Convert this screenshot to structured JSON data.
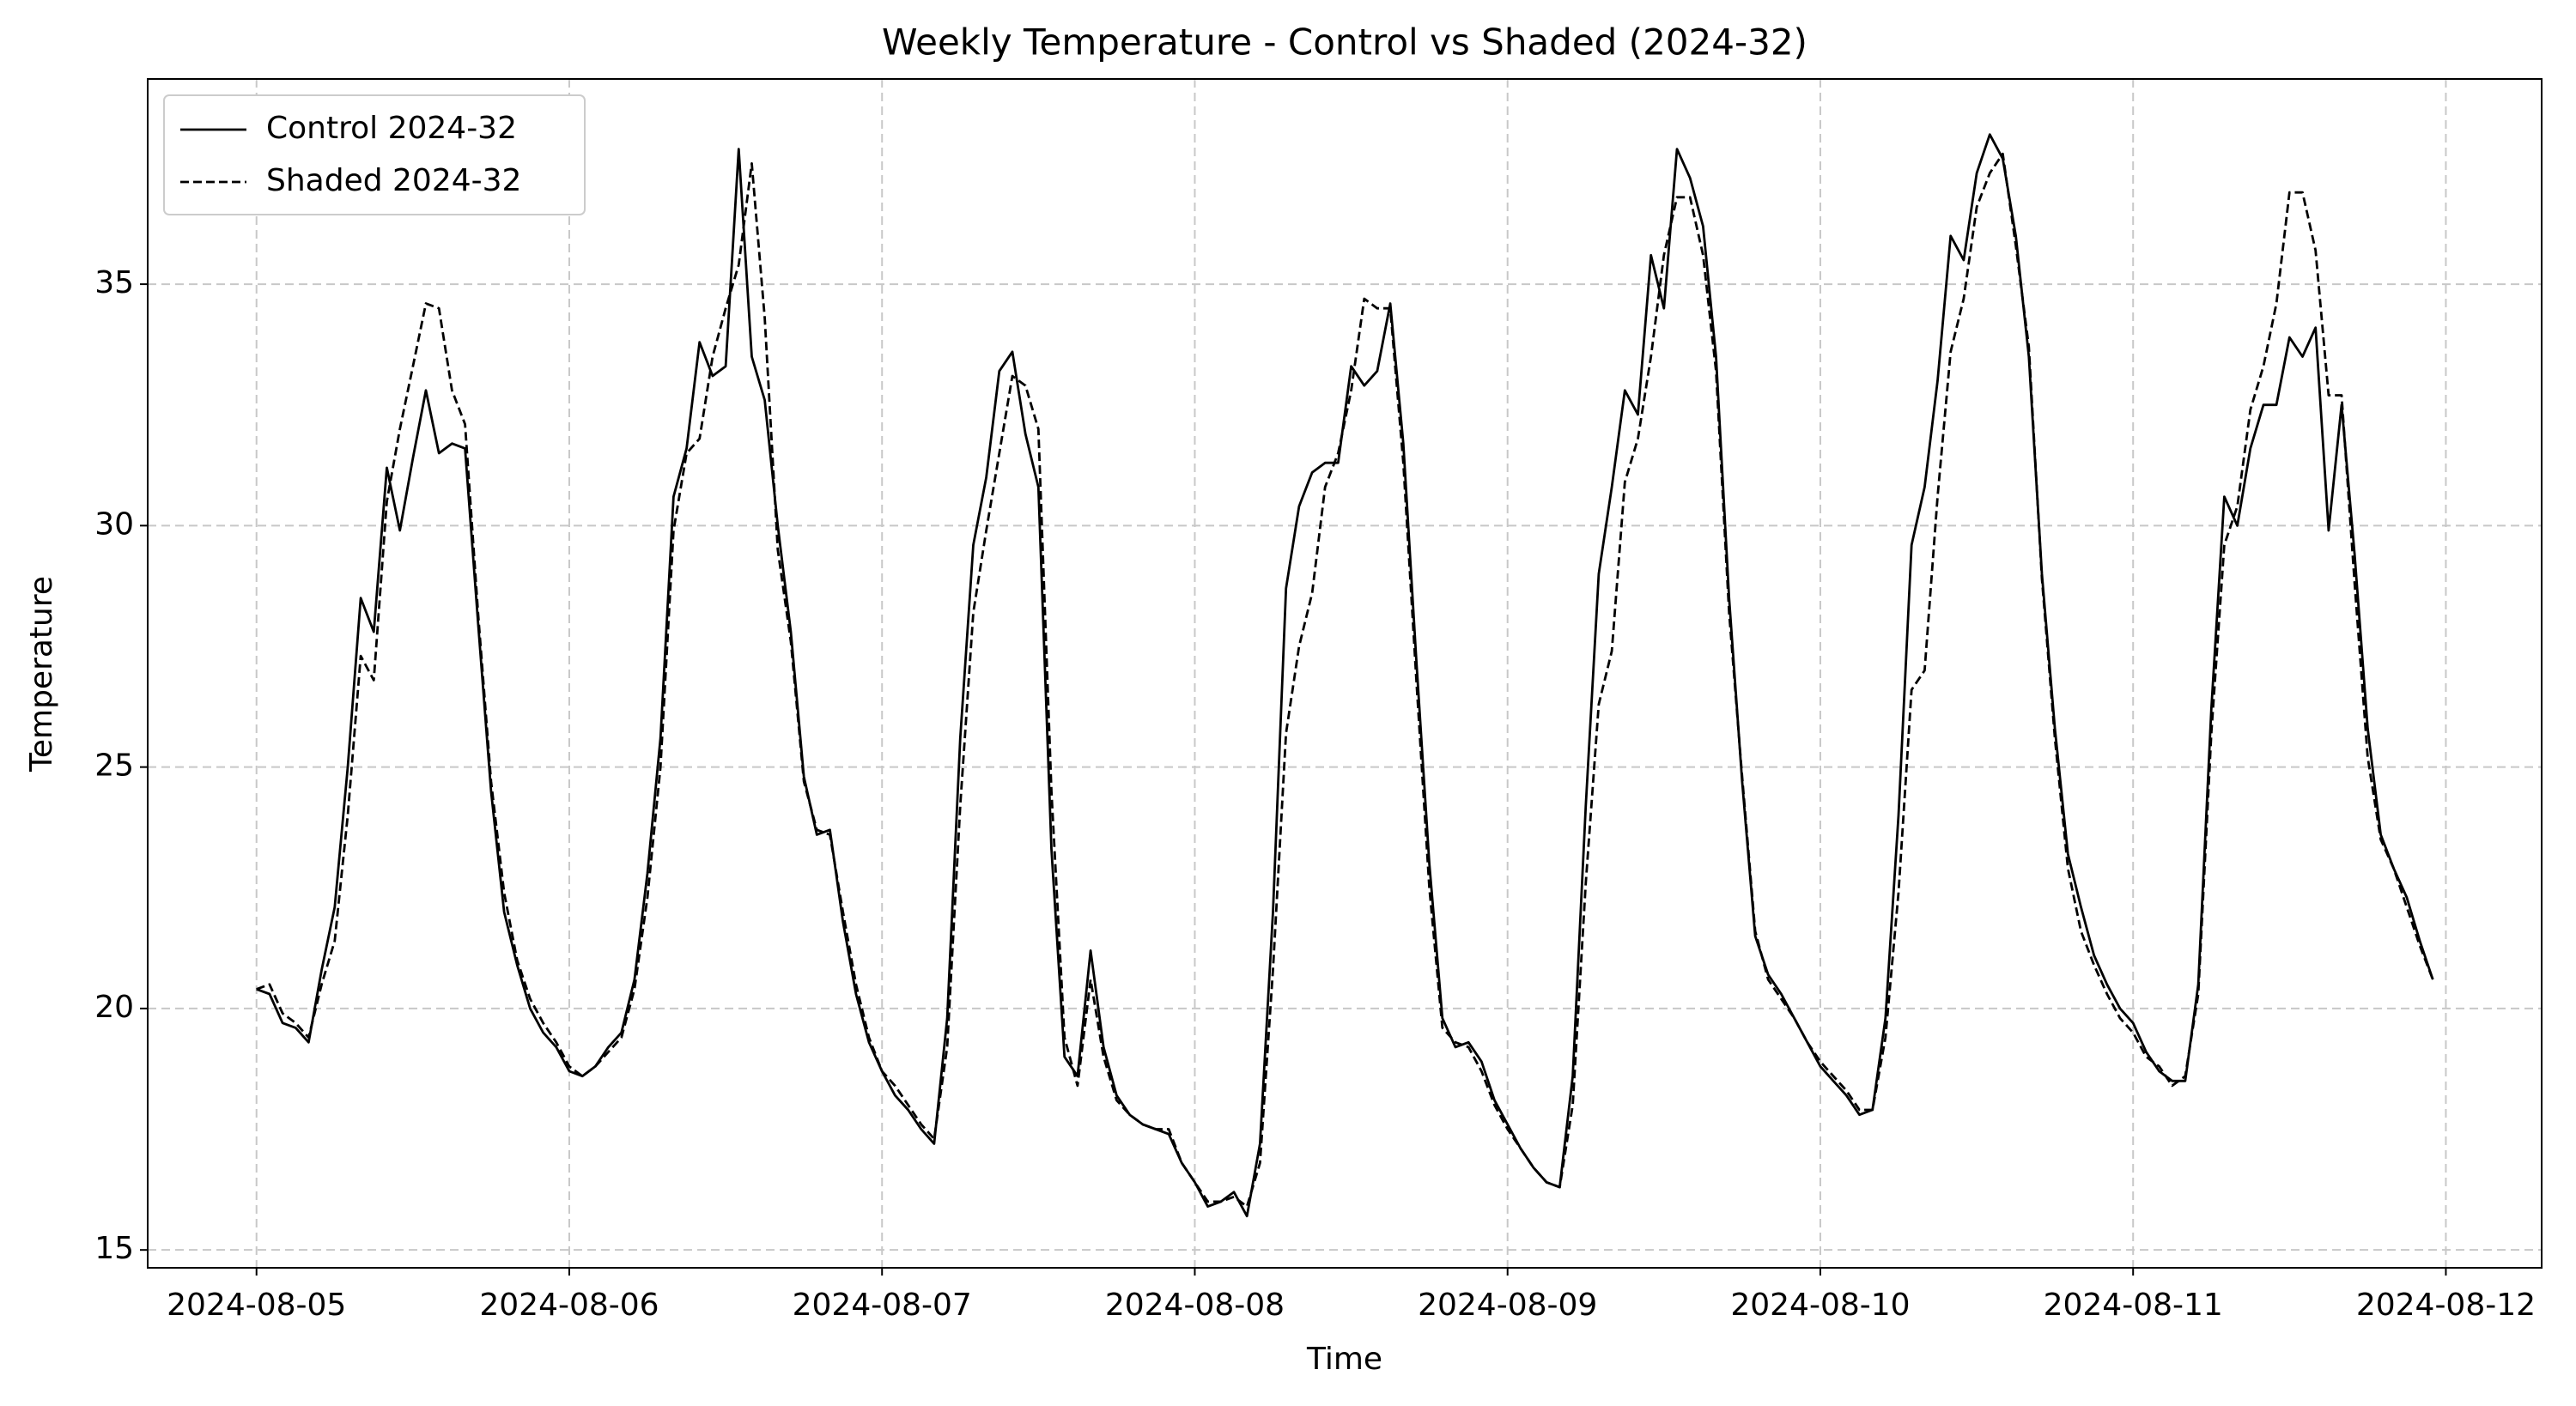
{
  "chart_data": {
    "type": "line",
    "title": "Weekly Temperature - Control vs Shaded (2024-32)",
    "xlabel": "Time",
    "ylabel": "Temperature",
    "x": [
      0,
      1,
      2,
      3,
      4,
      5,
      6,
      7,
      8,
      9,
      10,
      11,
      12,
      13,
      14,
      15,
      16,
      17,
      18,
      19,
      20,
      21,
      22,
      23,
      24,
      25,
      26,
      27,
      28,
      29,
      30,
      31,
      32,
      33,
      34,
      35,
      36,
      37,
      38,
      39,
      40,
      41,
      42,
      43,
      44,
      45,
      46,
      47,
      48,
      49,
      50,
      51,
      52,
      53,
      54,
      55,
      56,
      57,
      58,
      59,
      60,
      61,
      62,
      63,
      64,
      65,
      66,
      67,
      68,
      69,
      70,
      71,
      72,
      73,
      74,
      75,
      76,
      77,
      78,
      79,
      80,
      81,
      82,
      83,
      84,
      85,
      86,
      87,
      88,
      89,
      90,
      91,
      92,
      93,
      94,
      95,
      96,
      97,
      98,
      99,
      100,
      101,
      102,
      103,
      104,
      105,
      106,
      107,
      108,
      109,
      110,
      111,
      112,
      113,
      114,
      115,
      116,
      117,
      118,
      119,
      120,
      121,
      122,
      123,
      124,
      125,
      126,
      127,
      128,
      129,
      130,
      131,
      132,
      133,
      134,
      135,
      136,
      137,
      138,
      139,
      140,
      141,
      142,
      143,
      144,
      145,
      146,
      147,
      148,
      149,
      150,
      151,
      152,
      153,
      154,
      155,
      156,
      157,
      158,
      159,
      160,
      161,
      162,
      163,
      164,
      165,
      166,
      167
    ],
    "series": [
      {
        "name": "Control 2024-32",
        "color": "#000000",
        "linestyle": "solid",
        "values": [
          20.4,
          20.3,
          19.7,
          19.6,
          19.3,
          20.8,
          22.1,
          25.0,
          28.5,
          27.8,
          31.2,
          29.9,
          31.4,
          32.8,
          31.5,
          31.7,
          31.6,
          28.0,
          24.5,
          22.0,
          20.9,
          20.0,
          19.5,
          19.2,
          18.7,
          18.6,
          18.8,
          19.2,
          19.5,
          20.6,
          22.8,
          25.6,
          30.6,
          31.6,
          33.8,
          33.1,
          33.3,
          37.8,
          33.5,
          32.6,
          30.0,
          27.8,
          24.8,
          23.6,
          23.7,
          21.8,
          20.3,
          19.3,
          18.7,
          18.2,
          17.9,
          17.5,
          17.2,
          19.8,
          25.6,
          29.6,
          31.0,
          33.2,
          33.6,
          31.9,
          30.8,
          23.3,
          19.0,
          18.6,
          21.2,
          19.2,
          18.2,
          17.8,
          17.6,
          17.5,
          17.4,
          16.8,
          16.4,
          15.9,
          16.0,
          16.2,
          15.7,
          17.2,
          22.0,
          28.7,
          30.4,
          31.1,
          31.3,
          31.3,
          33.3,
          32.9,
          33.2,
          34.6,
          31.7,
          27.2,
          23.0,
          19.8,
          19.2,
          19.3,
          18.9,
          18.1,
          17.6,
          17.1,
          16.7,
          16.4,
          16.3,
          18.6,
          24.2,
          29.0,
          30.8,
          32.8,
          32.3,
          35.6,
          34.5,
          37.8,
          37.2,
          36.2,
          33.5,
          28.5,
          24.7,
          21.5,
          20.7,
          20.3,
          19.8,
          19.3,
          18.8,
          18.5,
          18.2,
          17.8,
          17.9,
          19.8,
          24.0,
          29.6,
          30.8,
          33.0,
          36.0,
          35.5,
          37.3,
          38.1,
          37.6,
          36.0,
          33.5,
          29.0,
          25.8,
          23.2,
          22.1,
          21.1,
          20.5,
          20.0,
          19.7,
          19.1,
          18.7,
          18.5,
          18.5,
          20.5,
          26.2,
          30.6,
          30.0,
          31.6,
          32.5,
          32.5,
          33.9,
          33.5,
          34.1,
          29.9,
          32.5,
          29.4,
          25.8,
          23.6,
          22.9,
          22.3,
          21.4,
          20.6
        ]
      },
      {
        "name": "Shaded 2024-32",
        "color": "#000000",
        "linestyle": "dashed",
        "values": [
          20.4,
          20.5,
          19.9,
          19.7,
          19.4,
          20.5,
          21.4,
          24.0,
          27.3,
          26.8,
          30.5,
          32.0,
          33.3,
          34.6,
          34.5,
          32.8,
          32.1,
          28.2,
          24.7,
          22.4,
          21.0,
          20.2,
          19.7,
          19.3,
          18.8,
          18.6,
          18.8,
          19.1,
          19.4,
          20.4,
          22.3,
          25.0,
          29.9,
          31.5,
          31.8,
          33.5,
          34.5,
          35.4,
          37.5,
          34.3,
          29.5,
          27.6,
          24.7,
          23.7,
          23.6,
          22.0,
          20.5,
          19.4,
          18.7,
          18.4,
          18.0,
          17.6,
          17.3,
          19.2,
          24.2,
          28.2,
          29.9,
          31.5,
          33.1,
          32.9,
          32.0,
          24.5,
          19.4,
          18.4,
          20.6,
          19.0,
          18.1,
          17.8,
          17.6,
          17.5,
          17.5,
          16.8,
          16.4,
          16.0,
          16.0,
          16.1,
          15.9,
          16.8,
          20.8,
          25.7,
          27.5,
          28.6,
          30.8,
          31.5,
          32.8,
          34.7,
          34.5,
          34.5,
          31.3,
          26.8,
          22.5,
          19.6,
          19.3,
          19.2,
          18.7,
          18.0,
          17.5,
          17.1,
          16.7,
          16.4,
          16.3,
          18.0,
          22.6,
          26.3,
          27.4,
          30.9,
          31.8,
          33.5,
          35.6,
          36.8,
          36.8,
          35.6,
          33.2,
          28.2,
          24.8,
          21.6,
          20.6,
          20.2,
          19.8,
          19.3,
          18.9,
          18.6,
          18.3,
          17.9,
          17.9,
          19.4,
          22.4,
          26.6,
          27.0,
          30.6,
          33.6,
          34.7,
          36.6,
          37.3,
          37.7,
          35.8,
          33.7,
          28.9,
          25.6,
          22.9,
          21.6,
          20.9,
          20.3,
          19.8,
          19.5,
          19.0,
          18.8,
          18.4,
          18.6,
          20.3,
          25.7,
          29.6,
          30.4,
          32.4,
          33.3,
          34.6,
          36.9,
          36.9,
          35.7,
          32.7,
          32.7,
          28.8,
          25.2,
          23.5,
          22.9,
          22.1,
          21.3,
          20.6
        ]
      }
    ],
    "xlim": [
      -8.35,
      175.35
    ],
    "xticks": [
      {
        "value": 0,
        "label": "2024-08-05"
      },
      {
        "value": 24,
        "label": "2024-08-06"
      },
      {
        "value": 48,
        "label": "2024-08-07"
      },
      {
        "value": 72,
        "label": "2024-08-08"
      },
      {
        "value": 96,
        "label": "2024-08-09"
      },
      {
        "value": 120,
        "label": "2024-08-10"
      },
      {
        "value": 144,
        "label": "2024-08-11"
      },
      {
        "value": 168,
        "label": "2024-08-12"
      }
    ],
    "ylim": [
      14.63,
      39.25
    ],
    "yticks": [
      15,
      20,
      25,
      30,
      35
    ],
    "grid": true,
    "legend": "upper left"
  }
}
